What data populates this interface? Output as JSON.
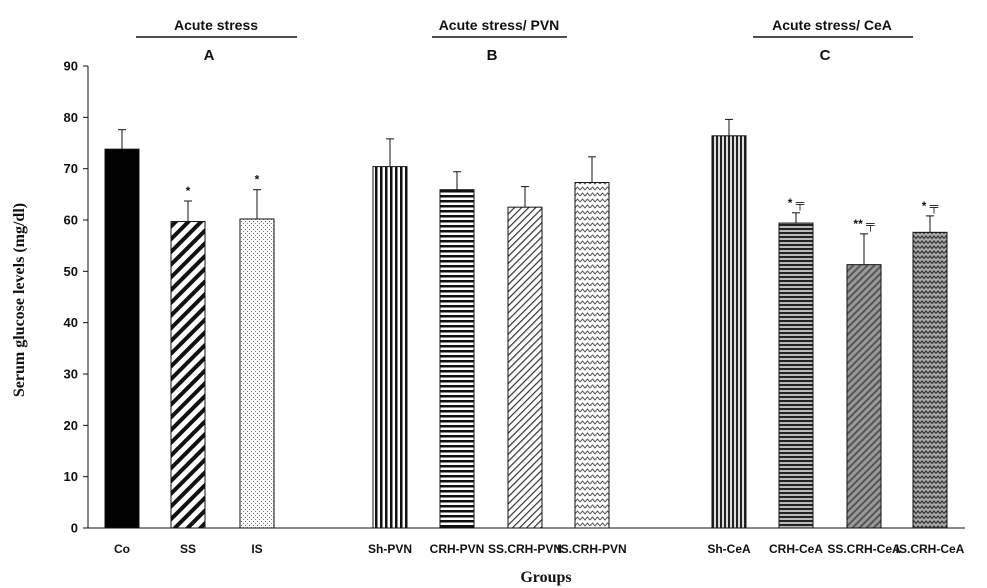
{
  "chart_data": {
    "type": "bar",
    "title": "",
    "xlabel": "Groups",
    "ylabel": "Serum glucose levels   (mg/dl)",
    "ylim": [
      0,
      90
    ],
    "yticks": [
      0,
      10,
      20,
      30,
      40,
      50,
      60,
      70,
      80,
      90
    ],
    "grid": false,
    "panels": [
      {
        "title": "Acute stress",
        "letter": "A"
      },
      {
        "title": "Acute stress/ PVN",
        "letter": "B"
      },
      {
        "title": "Acute stress/ CeA",
        "letter": "C"
      }
    ],
    "bars": [
      {
        "panel": 0,
        "category": "Co",
        "value": 73.8,
        "error": 3.8,
        "pattern": "solid",
        "sig": ""
      },
      {
        "panel": 0,
        "category": "SS",
        "value": 59.7,
        "error": 4.0,
        "pattern": "diag-wide",
        "sig": "*"
      },
      {
        "panel": 0,
        "category": "IS",
        "value": 60.2,
        "error": 5.7,
        "pattern": "dots",
        "sig": "*"
      },
      {
        "panel": 1,
        "category": "Sh-PVN",
        "value": 70.4,
        "error": 5.4,
        "pattern": "vert",
        "sig": ""
      },
      {
        "panel": 1,
        "category": "CRH-PVN",
        "value": 65.9,
        "error": 3.5,
        "pattern": "horiz",
        "sig": ""
      },
      {
        "panel": 1,
        "category": "SS.CRH-PVN",
        "value": 62.5,
        "error": 4.0,
        "pattern": "diag-fine",
        "sig": ""
      },
      {
        "panel": 1,
        "category": "IS.CRH-PVN",
        "value": 67.3,
        "error": 5.0,
        "pattern": "zigzag",
        "sig": ""
      },
      {
        "panel": 2,
        "category": "Sh-CeA",
        "value": 76.4,
        "error": 3.2,
        "pattern": "vert-gray",
        "sig": ""
      },
      {
        "panel": 2,
        "category": "CRH-CeA",
        "value": 59.4,
        "error": 2.0,
        "pattern": "horiz-gray",
        "sig": "* ╤"
      },
      {
        "panel": 2,
        "category": "SS.CRH-CeA",
        "value": 51.3,
        "error": 6.0,
        "pattern": "diag-gray",
        "sig": "** ╤"
      },
      {
        "panel": 2,
        "category": "IS.CRH-CeA",
        "value": 57.6,
        "error": 3.2,
        "pattern": "zigzag-gray",
        "sig": "* ╤"
      }
    ]
  }
}
